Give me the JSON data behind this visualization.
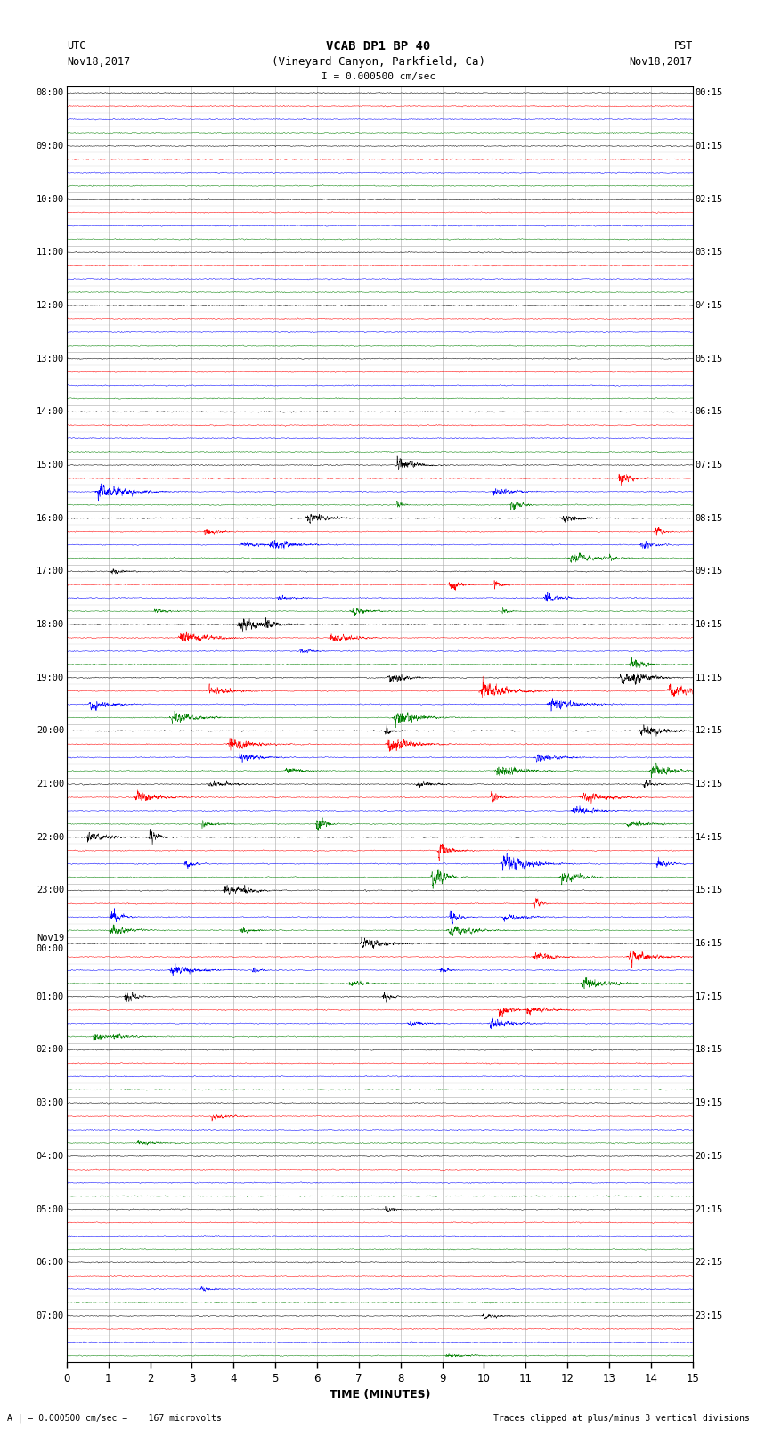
{
  "title_line1": "VCAB DP1 BP 40",
  "title_line2": "(Vineyard Canyon, Parkfield, Ca)",
  "scale_label": "I = 0.000500 cm/sec",
  "left_label_top": "UTC",
  "left_label_date": "Nov18,2017",
  "right_label_top": "PST",
  "right_label_date": "Nov18,2017",
  "bottom_label": "TIME (MINUTES)",
  "bottom_note_left": "A | = 0.000500 cm/sec =    167 microvolts",
  "bottom_note_right": "Traces clipped at plus/minus 3 vertical divisions",
  "utc_times": [
    "08:00",
    "09:00",
    "10:00",
    "11:00",
    "12:00",
    "13:00",
    "14:00",
    "15:00",
    "16:00",
    "17:00",
    "18:00",
    "19:00",
    "20:00",
    "21:00",
    "22:00",
    "23:00",
    "Nov19\n00:00",
    "01:00",
    "02:00",
    "03:00",
    "04:00",
    "05:00",
    "06:00",
    "07:00"
  ],
  "pst_times": [
    "00:15",
    "01:15",
    "02:15",
    "03:15",
    "04:15",
    "05:15",
    "06:15",
    "07:15",
    "08:15",
    "09:15",
    "10:15",
    "11:15",
    "12:15",
    "13:15",
    "14:15",
    "15:15",
    "16:15",
    "17:15",
    "18:15",
    "19:15",
    "20:15",
    "21:15",
    "22:15",
    "23:15"
  ],
  "colors": [
    "black",
    "red",
    "blue",
    "green"
  ],
  "n_rows": 24,
  "traces_per_row": 4,
  "duration_minutes": 15,
  "background_color": "white",
  "fig_width": 8.5,
  "fig_height": 16.13,
  "dpi": 100
}
